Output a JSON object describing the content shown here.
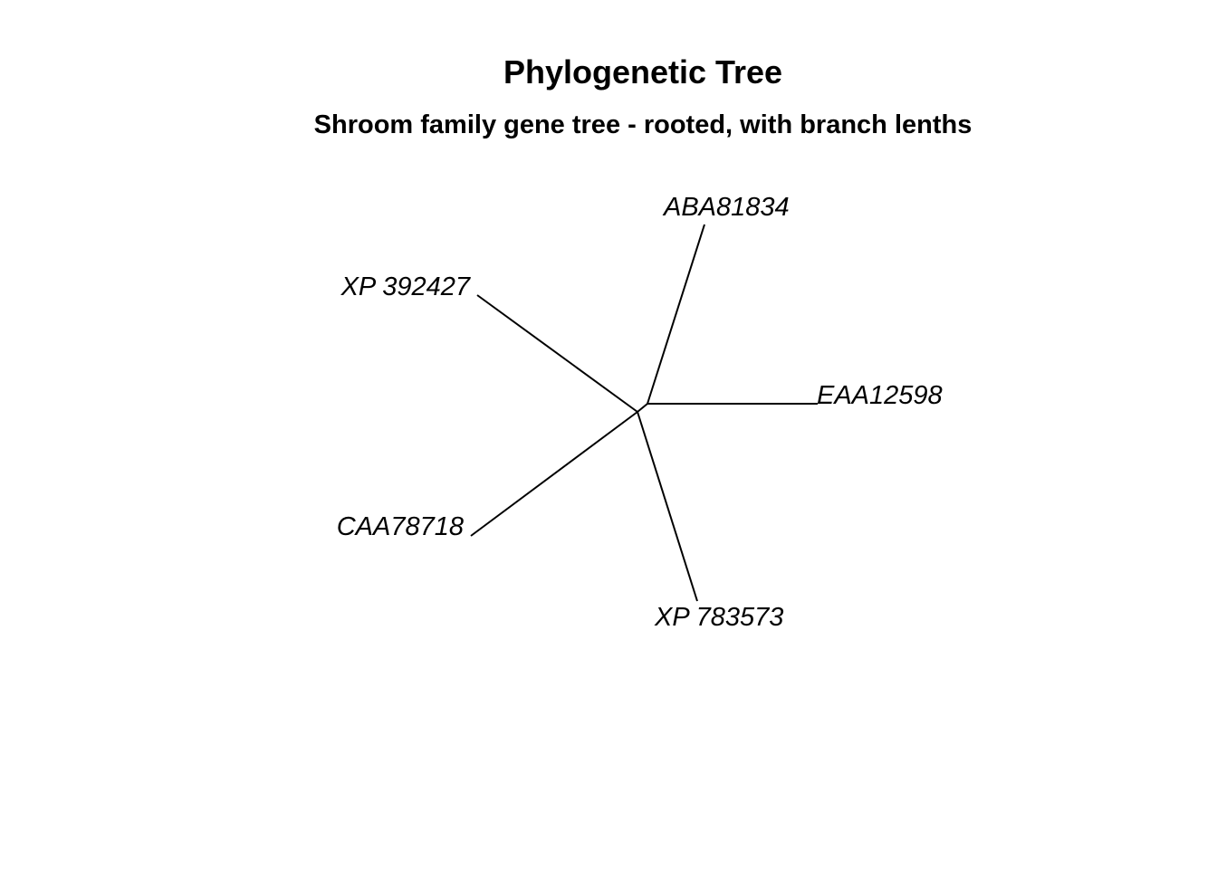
{
  "title": "Phylogenetic Tree",
  "subtitle": "Shroom family gene tree - rooted, with branch lenths",
  "tree": {
    "layout": "unrooted",
    "line_color": "#000000",
    "tips": [
      {
        "key": "aba",
        "label": "ABA81834"
      },
      {
        "key": "eaa",
        "label": "EAA12598"
      },
      {
        "key": "xp783",
        "label": "XP 783573"
      },
      {
        "key": "caa",
        "label": "CAA78718"
      },
      {
        "key": "xp392",
        "label": "XP 392427"
      }
    ]
  }
}
